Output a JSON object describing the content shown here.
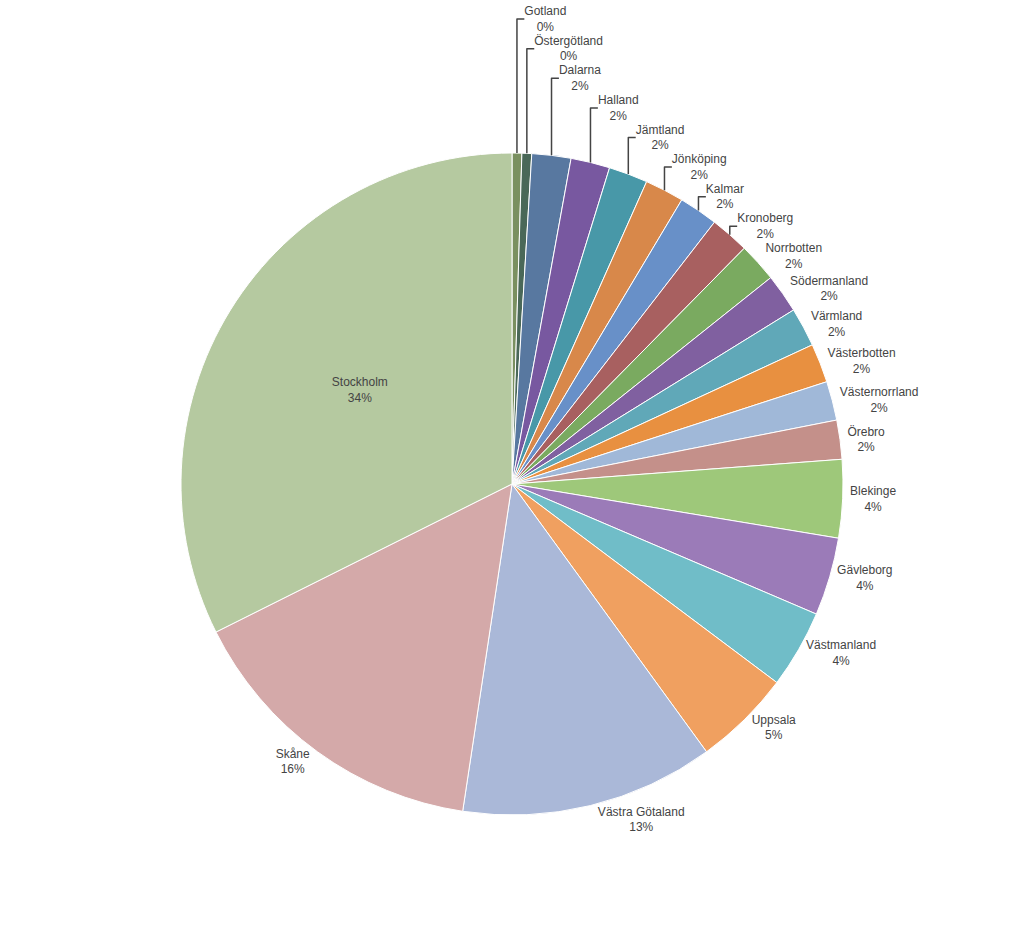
{
  "chart_data": {
    "type": "pie",
    "categories": [
      "Gotland",
      "Östergötland",
      "Dalarna",
      "Halland",
      "Jämtland",
      "Jönköping",
      "Kalmar",
      "Kronoberg",
      "Norrbotten",
      "Södermanland",
      "Värmland",
      "Västerbotten",
      "Västernorrland",
      "Örebro",
      "Blekinge",
      "Gävleborg",
      "Västmanland",
      "Uppsala",
      "Västra Götaland",
      "Skåne",
      "Stockholm"
    ],
    "values": [
      0.5,
      0.5,
      2,
      2,
      2,
      2,
      2,
      2,
      2,
      2,
      2,
      2,
      2,
      2,
      4,
      4,
      4,
      5,
      13,
      16,
      34
    ],
    "value_labels": [
      "0%",
      "0%",
      "2%",
      "2%",
      "2%",
      "2%",
      "2%",
      "2%",
      "2%",
      "2%",
      "2%",
      "2%",
      "2%",
      "2%",
      "4%",
      "4%",
      "4%",
      "5%",
      "13%",
      "16%",
      "34%"
    ],
    "colors": [
      "#7a9060",
      "#4a6858",
      "#5878a0",
      "#7858a0",
      "#4898a8",
      "#d8884a",
      "#6890c8",
      "#a86060",
      "#7aaa60",
      "#8060a0",
      "#60a8b8",
      "#e89040",
      "#a0b8d8",
      "#c4908a",
      "#9ec87a",
      "#9b7bb8",
      "#70bdc8",
      "#f0a060",
      "#aab8d8",
      "#d4a9a9",
      "#b5c9a0"
    ],
    "data_labels": true
  }
}
